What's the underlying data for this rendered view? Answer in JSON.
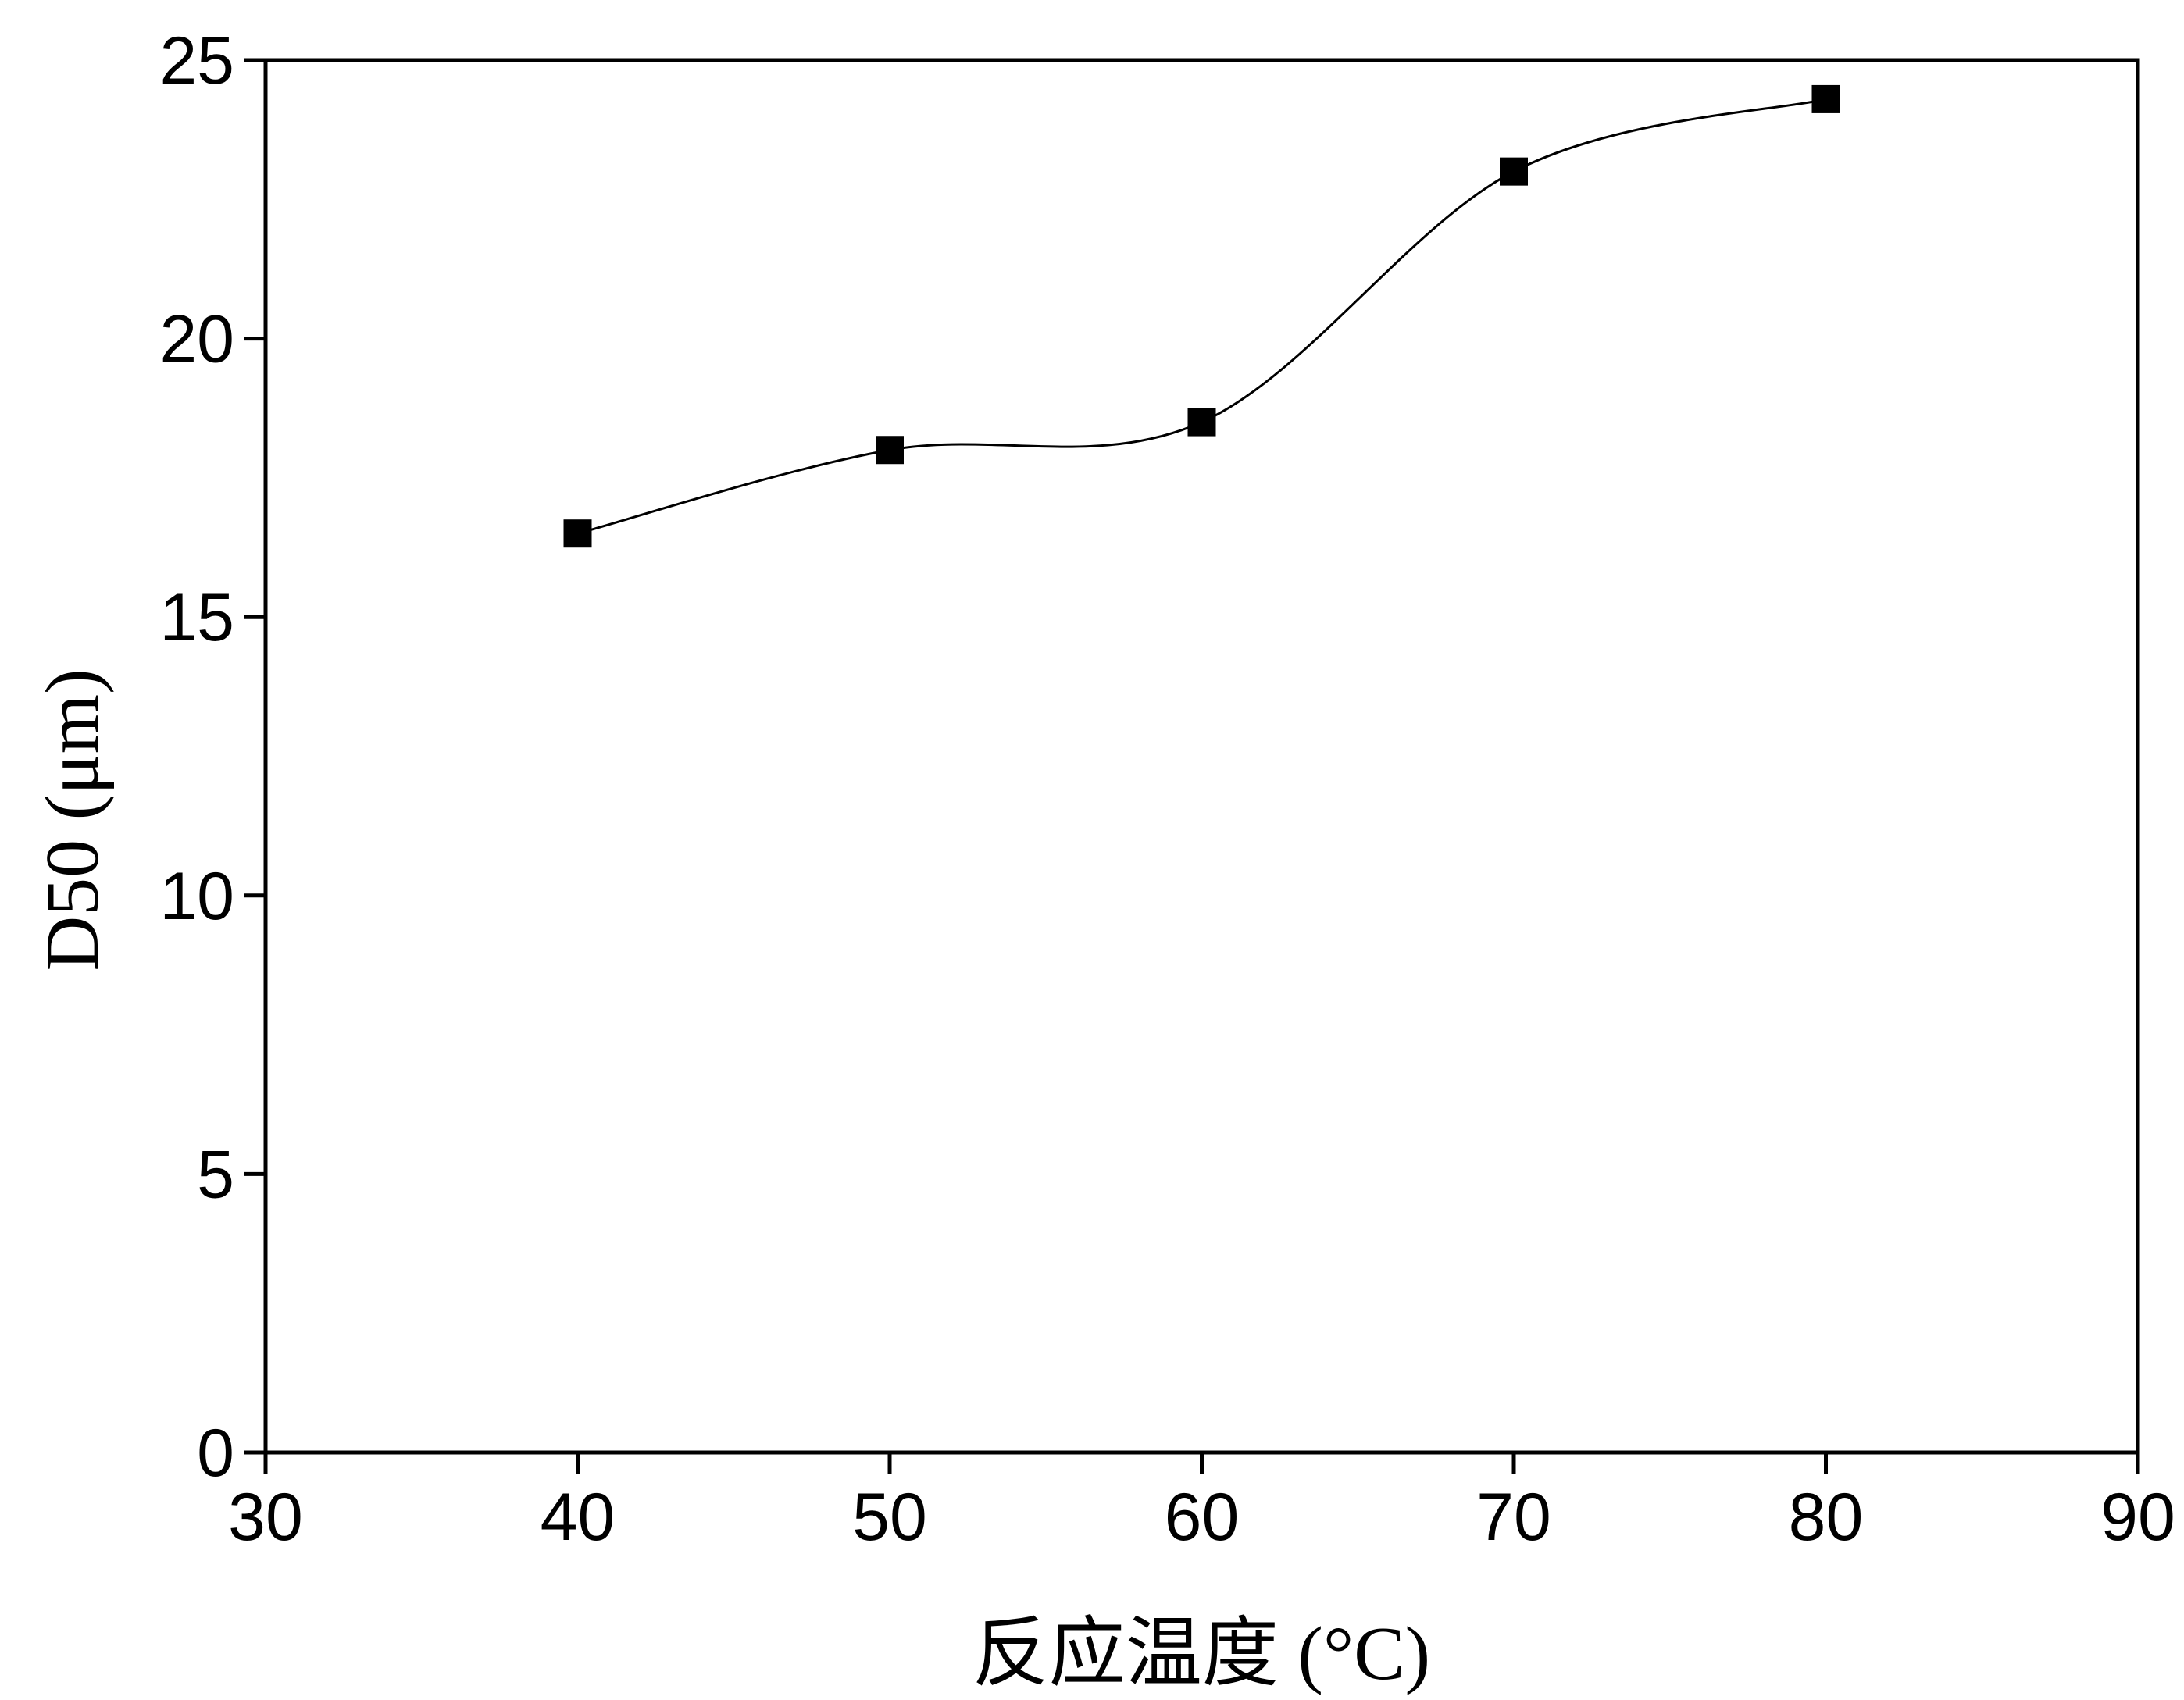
{
  "chart_data": {
    "type": "line",
    "x_label": "反应温度 (°C)",
    "y_label": "D50 (μm)",
    "x": [
      40,
      50,
      60,
      70,
      80
    ],
    "series": [
      {
        "color": "#000000",
        "values": [
          16.5,
          18.0,
          18.5,
          23.0,
          24.3
        ]
      }
    ],
    "xlim": [
      30,
      90
    ],
    "xticks": [
      30,
      40,
      50,
      60,
      70,
      80,
      90
    ],
    "ylim": [
      0,
      25
    ],
    "yticks": [
      0,
      5,
      10,
      15,
      20,
      25
    ]
  }
}
